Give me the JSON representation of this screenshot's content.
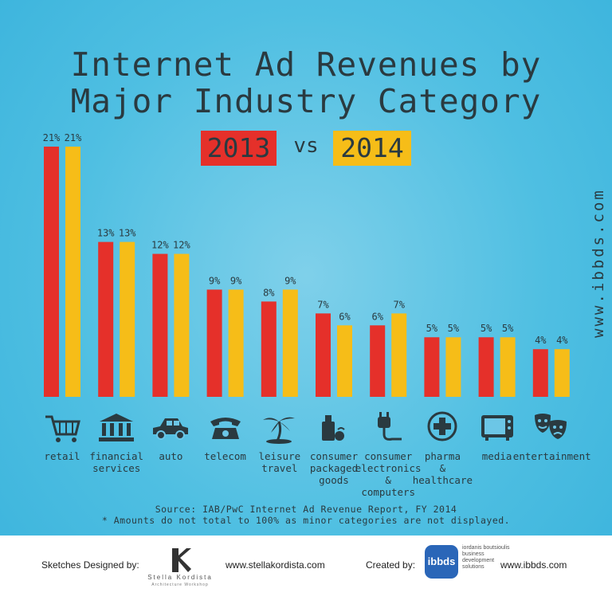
{
  "header": {
    "title_line1": "Internet Ad Revenues by",
    "title_line2": "Major Industry Category",
    "year_a": "2013",
    "vs": "vs",
    "year_b": "2014",
    "site_vertical": "www.ibbds.com"
  },
  "colors": {
    "2013": "#e5302a",
    "2014": "#f6bd18",
    "background": "#4fbfe2"
  },
  "chart_data": {
    "type": "bar",
    "categories": [
      "retail",
      "financial services",
      "auto",
      "telecom",
      "leisure travel",
      "consumer packaged goods",
      "consumer electronics & computers",
      "pharma & healthcare",
      "media",
      "entertainment"
    ],
    "category_lines": [
      [
        "retail"
      ],
      [
        "financial",
        "services"
      ],
      [
        "auto"
      ],
      [
        "telecom"
      ],
      [
        "leisure",
        "travel"
      ],
      [
        "consumer",
        "packaged",
        "goods"
      ],
      [
        "consumer",
        "electronics",
        "&",
        "computers"
      ],
      [
        "pharma",
        "&",
        "healthcare"
      ],
      [
        "media"
      ],
      [
        "entertainment"
      ]
    ],
    "icons": [
      "shopping-cart-icon",
      "bank-icon",
      "car-icon",
      "telephone-icon",
      "palm-tree-icon",
      "grocery-bag-icon",
      "plug-icon",
      "medical-cross-icon",
      "television-icon",
      "theater-masks-icon"
    ],
    "series": [
      {
        "name": "2013",
        "values": [
          21,
          13,
          12,
          9,
          8,
          7,
          6,
          5,
          5,
          4
        ]
      },
      {
        "name": "2014",
        "values": [
          21,
          13,
          12,
          9,
          9,
          6,
          7,
          5,
          5,
          4
        ]
      }
    ],
    "value_labels": {
      "2013": [
        "21%",
        "13%",
        "12%",
        "9%",
        "8%",
        "7%",
        "6%",
        "5%",
        "5%",
        "4%"
      ],
      "2014": [
        "21%",
        "13%",
        "12%",
        "9%",
        "9%",
        "6%",
        "7%",
        "5%",
        "5%",
        "4%"
      ]
    },
    "ylim": [
      0,
      21
    ],
    "legend": "top-center"
  },
  "notes": {
    "source": "Source: IAB/PwC Internet Ad Revenue Report, FY 2014",
    "footnote": "* Amounts do not total to 100% as minor categories are not displayed."
  },
  "footer": {
    "sketches_label": "Sketches Designed by:",
    "logo1_name": "Stella Kordista",
    "logo1_sub": "Architecture Workshop",
    "site1": "www.stellakordista.com",
    "created_label": "Created by:",
    "logo2": "ibbds",
    "logo2_tag": "iordanis boutsioulis business development solutions",
    "site2": "www.ibbds.com"
  }
}
